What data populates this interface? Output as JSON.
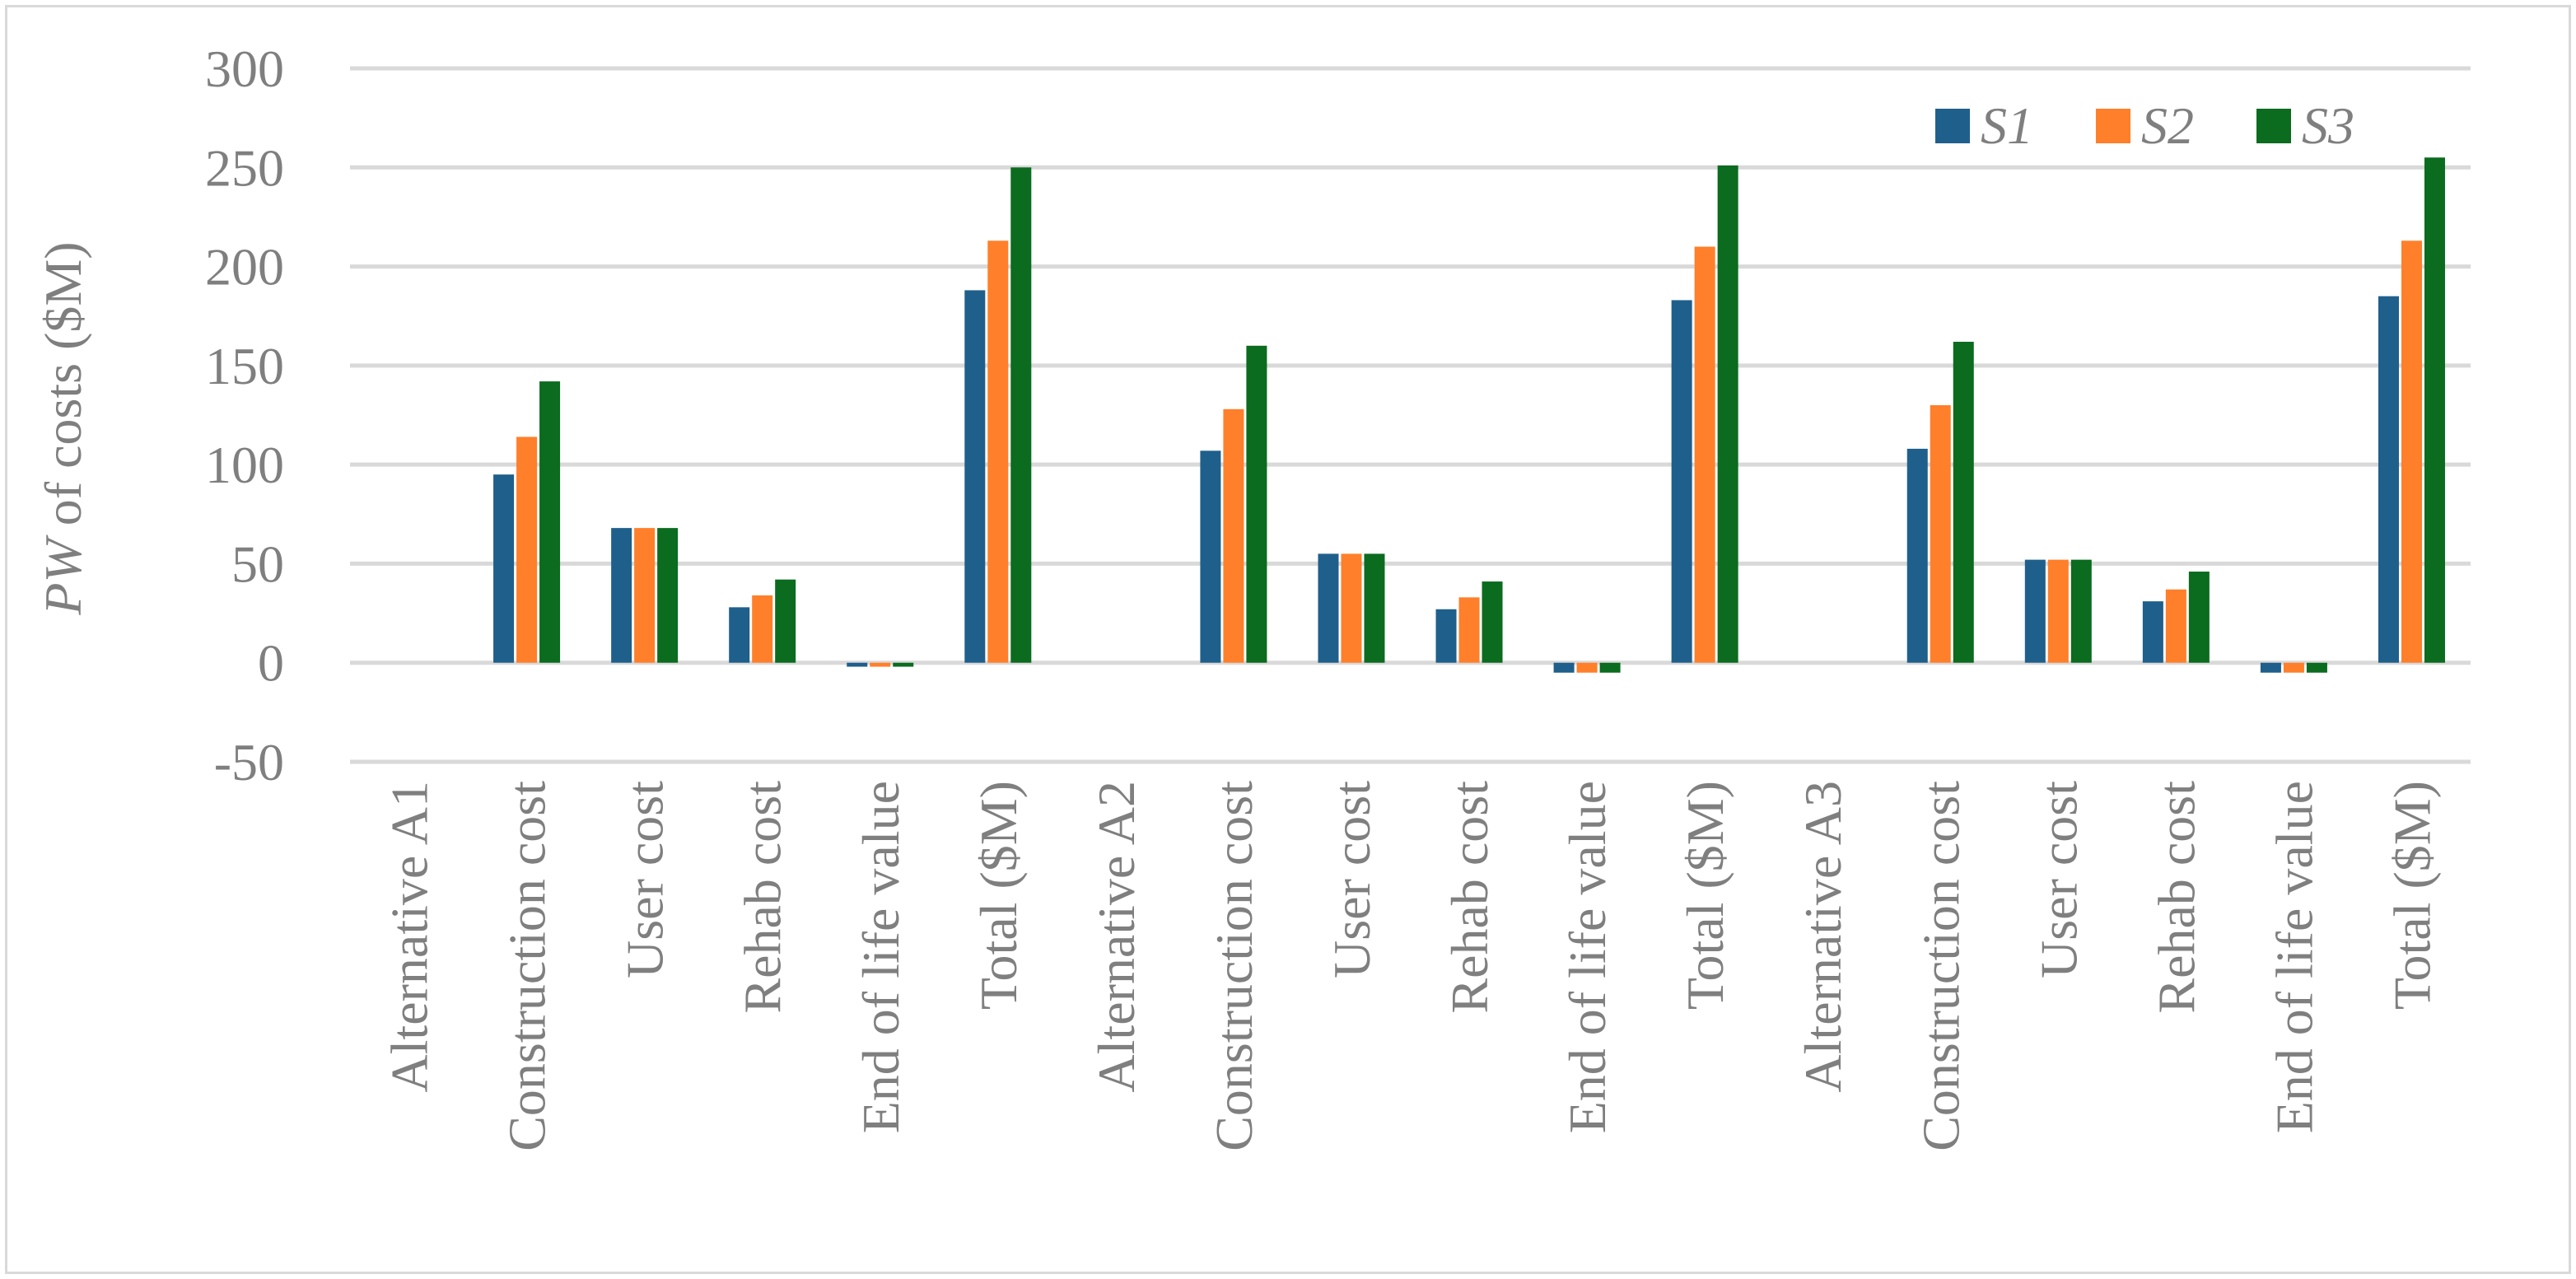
{
  "chart_data": {
    "type": "bar",
    "title": "",
    "xlabel": "",
    "ylabel": "PW of costs ($M)",
    "ylabel_italic_part": "PW",
    "ylabel_rest": " of costs ($M)",
    "ylim": [
      -50,
      300
    ],
    "yticks": [
      -50,
      0,
      50,
      100,
      150,
      200,
      250,
      300
    ],
    "grid": true,
    "legend_position": "top-right",
    "categories": [
      "Alternative A1",
      "Construction cost",
      "User cost",
      "Rehab cost",
      "End of life value",
      "Total ($M)",
      "Alternative A2",
      "Construction cost",
      "User cost",
      "Rehab cost",
      "End of life value",
      "Total ($M)",
      "Alternative A3",
      "Construction cost",
      "User cost",
      "Rehab cost",
      "End of life value",
      "Total ($M)"
    ],
    "series": [
      {
        "name": "S1",
        "color": "#1f5f8b",
        "values": [
          null,
          95,
          68,
          28,
          -2,
          188,
          null,
          107,
          55,
          27,
          -5,
          183,
          null,
          108,
          52,
          31,
          -5,
          185
        ]
      },
      {
        "name": "S2",
        "color": "#ff7f2a",
        "values": [
          null,
          114,
          68,
          34,
          -2,
          213,
          null,
          128,
          55,
          33,
          -5,
          210,
          null,
          130,
          52,
          37,
          -5,
          213
        ]
      },
      {
        "name": "S3",
        "color": "#0b6b1f",
        "values": [
          null,
          142,
          68,
          42,
          -2,
          250,
          null,
          160,
          55,
          41,
          -5,
          251,
          null,
          162,
          52,
          46,
          -5,
          255
        ]
      }
    ]
  }
}
